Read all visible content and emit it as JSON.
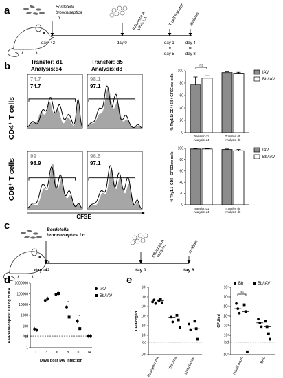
{
  "panels": {
    "a": {
      "label": "a",
      "bacteria_label_1": "Bordetella",
      "bacteria_label_2": "bronchiseptica",
      "bacteria_label_3": "i.n.",
      "virus_label_1": "influenza A",
      "virus_label_2": "virus i.n.",
      "transfer_label": "T cell transfer",
      "analysis_label": "analysis",
      "timepoints": [
        "day -42",
        "day 0",
        "day 1",
        "or",
        "day 5",
        "day 4",
        "or",
        "day 8"
      ]
    },
    "b": {
      "label": "b",
      "col1_title_1": "Transfer: d1",
      "col1_title_2": "Analysis:d4",
      "col2_title_1": "Transfer: d5",
      "col2_title_2": "Analysis:d8",
      "row1_label": "CD4⁺ T cells",
      "row2_label": "CD8⁺ T cells",
      "x_label": "CFSE",
      "histograms": [
        {
          "row": "CD4",
          "col": "d1",
          "pct_gray": "74.7",
          "pct_black": "74.7"
        },
        {
          "row": "CD4",
          "col": "d5",
          "pct_gray": "98.1",
          "pct_black": "97.1"
        },
        {
          "row": "CD8",
          "col": "d1",
          "pct_gray": "99",
          "pct_black": "98.9"
        },
        {
          "row": "CD8",
          "col": "d5",
          "pct_gray": "96.5",
          "pct_black": "97.1"
        }
      ]
    },
    "c": {
      "label": "c",
      "bacteria_label_1": "Bordetella",
      "bacteria_label_2": "bronchiseptica i.n.",
      "virus_label_1": "influenza A",
      "virus_label_2": "virus i.n.",
      "analysis_label": "analysis",
      "timepoints": [
        "day -42",
        "day 0",
        "day 6"
      ]
    },
    "d": {
      "label": "d"
    },
    "e": {
      "label": "e"
    }
  },
  "chart_data": [
    {
      "id": "b-cd4-bar",
      "type": "bar",
      "ylabel": "% Thy1.1+CD4+6.5+ CFSElow cells",
      "categories": [
        "Transfer: d1 Analysis: d4",
        "Transfer: d5 Analysis: d8"
      ],
      "series": [
        {
          "name": "IAV",
          "values": [
            78,
            97
          ],
          "errors": [
            12,
            1.5
          ]
        },
        {
          "name": "Bb/IAV",
          "values": [
            88,
            96
          ],
          "errors": [
            4,
            1.5
          ]
        }
      ],
      "ylim": [
        0,
        100
      ],
      "yticks": [
        "0",
        "20",
        "40",
        "60",
        "80",
        "100"
      ],
      "annotation": "ns",
      "legend": "right",
      "colors": {
        "IAV": "#8c8c8c",
        "Bb/IAV": "#ffffff"
      }
    },
    {
      "id": "b-cd8-bar",
      "type": "bar",
      "ylabel": "% Thy1.1+CD8+ CFSElow cells",
      "categories": [
        "Transfer: d1 Analysis: d4",
        "Transfer: d5 Analysis: d8"
      ],
      "series": [
        {
          "name": "IAV",
          "values": [
            99,
            98
          ],
          "errors": [
            0.5,
            1
          ]
        },
        {
          "name": "Bb/IAV",
          "values": [
            99,
            96
          ],
          "errors": [
            0.5,
            2
          ]
        }
      ],
      "ylim": [
        0,
        100
      ],
      "yticks": [
        "0",
        "20",
        "40",
        "60",
        "80",
        "100"
      ],
      "legend": "right",
      "colors": {
        "IAV": "#8c8c8c",
        "Bb/IAV": "#ffffff"
      }
    },
    {
      "id": "d-viral-load",
      "type": "scatter",
      "xlabel": "Days post IAV infection",
      "ylabel": "A/PR8/34 copies/ 100 ng cDNA",
      "x": [
        1,
        3,
        6,
        8,
        10,
        14
      ],
      "xticks": [
        "1",
        "3",
        "6",
        "8",
        "10",
        "14"
      ],
      "yticks": [
        "1",
        "10",
        "100",
        "1000",
        "10000",
        "100000",
        "1000000"
      ],
      "yscale": "log",
      "ylim": [
        1,
        1000000
      ],
      "lod_label": "lod",
      "lod_value": 12,
      "significance": [
        {
          "x": 8,
          "label": "**"
        },
        {
          "x": 10,
          "label": "**"
        }
      ],
      "series": [
        {
          "name": "IAV",
          "marker": "circle",
          "y": [
            55,
            25000,
            90000,
            6000,
            300,
            12
          ]
        },
        {
          "name": "Bb/IAV",
          "marker": "square",
          "y": [
            45,
            35000,
            110000,
            700,
            60,
            12
          ]
        }
      ],
      "legend": "right"
    },
    {
      "id": "e-organ",
      "type": "scatter",
      "ylabel": "CFU/organ",
      "categories": [
        "Nasopharynx",
        "Trachea",
        "Lung tissue"
      ],
      "yticks": [
        "10⁰",
        "lod",
        "10²",
        "10³",
        "10⁴",
        "10⁵",
        "10⁶",
        "10⁷"
      ],
      "yscale": "log",
      "lod_label": "lod",
      "series": [
        {
          "name": "Bb",
          "marker": "circle",
          "points": [
            [
              0,
              300000
            ],
            [
              0,
              500000
            ],
            [
              0,
              200000
            ],
            [
              1,
              8000
            ],
            [
              1,
              2500
            ],
            [
              2,
              1500
            ],
            [
              2,
              400
            ]
          ]
        },
        {
          "name": "Bb/IAV",
          "marker": "square",
          "points": [
            [
              0,
              400000
            ],
            [
              0,
              600000
            ],
            [
              0,
              250000
            ],
            [
              1,
              12000
            ],
            [
              1,
              4000
            ],
            [
              1,
              700
            ],
            [
              2,
              3000
            ],
            [
              2,
              500
            ],
            [
              2,
              40
            ]
          ]
        }
      ]
    },
    {
      "id": "e-cfu-ml",
      "type": "scatter",
      "ylabel": "CFU/ml",
      "categories": [
        "Nasal wash",
        "BAL"
      ],
      "yticks": [
        "10⁰",
        "lod",
        "10²",
        "10³",
        "10⁴",
        "10⁵",
        "10⁶",
        "10⁷"
      ],
      "yscale": "log",
      "lod_label": "lod",
      "annotation": "ns",
      "series": [
        {
          "name": "Bb",
          "marker": "circle",
          "points": [
            [
              0,
              200000
            ],
            [
              0,
              60000
            ],
            [
              0,
              20000
            ],
            [
              1,
              5000
            ],
            [
              1,
              2000
            ],
            [
              1,
              800
            ]
          ]
        },
        {
          "name": "Bb/IAV",
          "marker": "square",
          "points": [
            [
              0,
              150000
            ],
            [
              0,
              30000
            ],
            [
              0,
              2
            ],
            [
              1,
              3000
            ],
            [
              1,
              800
            ],
            [
              1,
              150
            ],
            [
              1,
              40
            ]
          ]
        }
      ],
      "legend": "top-right"
    }
  ]
}
